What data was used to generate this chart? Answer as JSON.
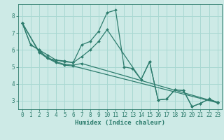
{
  "xlabel": "Humidex (Indice chaleur)",
  "bg_color": "#cdeae6",
  "grid_color": "#a8d8d2",
  "line_color": "#2e7d6e",
  "xlim": [
    -0.5,
    23.5
  ],
  "ylim": [
    2.5,
    8.7
  ],
  "xticks": [
    0,
    1,
    2,
    3,
    4,
    5,
    6,
    7,
    8,
    9,
    10,
    11,
    12,
    13,
    14,
    15,
    16,
    17,
    18,
    19,
    20,
    21,
    22,
    23
  ],
  "yticks": [
    3,
    4,
    5,
    6,
    7,
    8
  ],
  "lines": [
    {
      "x": [
        0,
        1,
        2,
        3,
        4,
        5,
        6,
        7,
        8,
        9,
        10,
        11,
        12,
        13,
        14,
        15,
        16,
        17,
        18,
        19,
        20,
        21,
        22,
        23
      ],
      "y": [
        7.6,
        6.3,
        6.0,
        5.5,
        5.4,
        5.3,
        5.25,
        6.3,
        6.5,
        7.1,
        8.2,
        8.35,
        5.0,
        4.9,
        4.25,
        5.3,
        3.05,
        3.1,
        3.65,
        3.6,
        2.65,
        2.85,
        3.1,
        2.9
      ]
    },
    {
      "x": [
        0,
        1,
        2,
        3,
        4,
        5,
        6,
        7,
        8,
        9,
        10,
        14,
        15,
        16,
        17,
        18,
        19,
        20,
        21,
        22,
        23
      ],
      "y": [
        7.6,
        6.3,
        6.0,
        5.7,
        5.4,
        5.35,
        5.25,
        5.6,
        6.0,
        6.5,
        7.2,
        4.25,
        5.3,
        3.05,
        3.1,
        3.65,
        3.6,
        2.65,
        2.85,
        3.1,
        2.9
      ]
    },
    {
      "x": [
        0,
        2,
        3,
        4,
        5,
        6,
        7,
        23
      ],
      "y": [
        7.6,
        5.9,
        5.55,
        5.3,
        5.15,
        5.1,
        5.2,
        2.9
      ]
    },
    {
      "x": [
        0,
        2,
        3,
        4,
        5,
        6,
        23
      ],
      "y": [
        7.6,
        5.85,
        5.5,
        5.25,
        5.1,
        5.05,
        2.88
      ]
    }
  ]
}
